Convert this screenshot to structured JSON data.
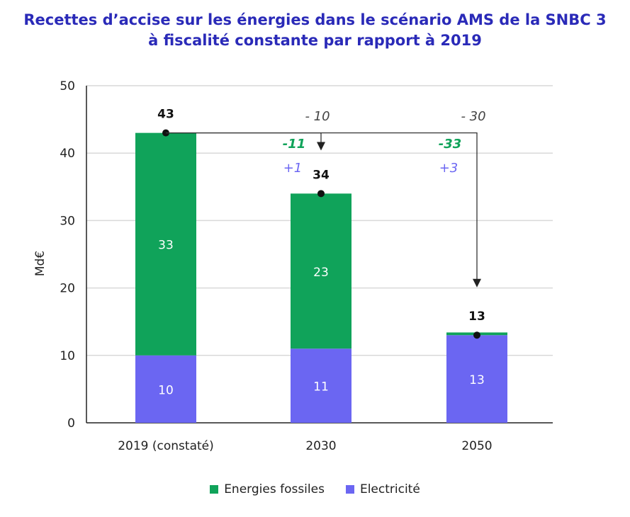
{
  "title_line1": "Recettes d’accise sur les énergies dans le scénario AMS de la SNBC 3",
  "title_line2": "à fiscalité constante par rapport à 2019",
  "chart_data": {
    "type": "bar",
    "stacked": true,
    "categories": [
      "2019 (constaté)",
      "2030",
      "2050"
    ],
    "series": [
      {
        "name": "Electricité",
        "values": [
          10,
          11,
          13
        ],
        "labels": [
          "10",
          "11",
          "13"
        ],
        "color": "#6b66f2"
      },
      {
        "name": "Energies fossiles",
        "values": [
          33,
          23,
          0.4
        ],
        "labels": [
          "33",
          "23",
          ""
        ],
        "color": "#10a35a"
      }
    ],
    "totals": [
      43,
      34,
      13
    ],
    "total_labels": [
      "43",
      "34",
      "13"
    ],
    "ylabel": "Md€",
    "ylim": [
      0,
      50
    ],
    "yticks": [
      0,
      10,
      20,
      30,
      40,
      50
    ],
    "grid": true,
    "legend_position": "bottom",
    "annotations": [
      {
        "category": "2030",
        "total_change": "- 10",
        "fossil_change": "-11",
        "electricity_change": "+1"
      },
      {
        "category": "2050",
        "total_change": "- 30",
        "fossil_change": "-33",
        "electricity_change": "+3"
      }
    ],
    "annotation_colors": {
      "total": "#444444",
      "fossil": "#10a35a",
      "electricity": "#6b66f2"
    }
  }
}
